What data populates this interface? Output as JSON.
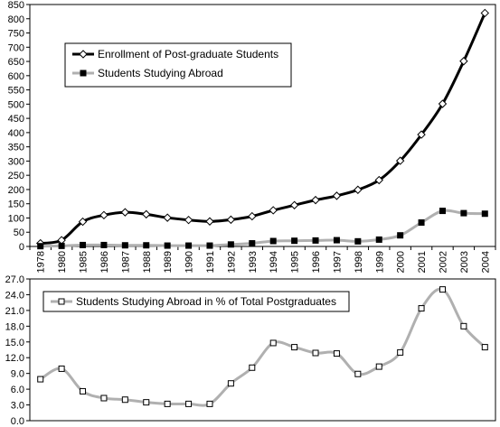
{
  "chart_data": [
    {
      "type": "line",
      "title": "",
      "xlabel": "",
      "ylabel": "",
      "categories": [
        "1978",
        "1980",
        "1985",
        "1986",
        "1987",
        "1988",
        "1989",
        "1990",
        "1991",
        "1992",
        "1993",
        "1994",
        "1995",
        "1996",
        "1997",
        "1998",
        "1999",
        "2000",
        "2001",
        "2002",
        "2003",
        "2004"
      ],
      "ylim": [
        0,
        850
      ],
      "yticks": [
        0,
        50,
        100,
        150,
        200,
        250,
        300,
        350,
        400,
        450,
        500,
        550,
        600,
        650,
        700,
        750,
        800,
        850
      ],
      "grid": false,
      "legend_position": "top-left",
      "series": [
        {
          "name": "Enrollment of Post-graduate Students",
          "color": "#000000",
          "marker": "diamond-open",
          "values": [
            11,
            22,
            87,
            110,
            120,
            113,
            101,
            93,
            88,
            94,
            106,
            127,
            145,
            163,
            178,
            199,
            233,
            301,
            393,
            501,
            651,
            820
          ]
        },
        {
          "name": "Students Studying Abroad",
          "color": "#b0b0b0",
          "marker": "square-filled",
          "values": [
            1,
            2,
            5,
            5,
            4,
            4,
            3,
            3,
            3,
            7,
            11,
            19,
            20,
            21,
            22,
            18,
            24,
            39,
            84,
            125,
            117,
            115
          ]
        }
      ]
    },
    {
      "type": "line",
      "title": "",
      "xlabel": "",
      "ylabel": "",
      "categories": [
        "1978",
        "1980",
        "1985",
        "1986",
        "1987",
        "1988",
        "1989",
        "1990",
        "1991",
        "1992",
        "1993",
        "1994",
        "1995",
        "1996",
        "1997",
        "1998",
        "1999",
        "2000",
        "2001",
        "2002",
        "2003",
        "2004"
      ],
      "ylim": [
        0.0,
        27.0
      ],
      "yticks": [
        "0.0",
        "3.0",
        "6.0",
        "9.0",
        "12.0",
        "15.0",
        "18.0",
        "21.0",
        "24.0",
        "27.0"
      ],
      "grid": false,
      "legend_position": "top-left",
      "series": [
        {
          "name": "Students Studying Abroad in % of Total Postgraduates",
          "color": "#b0b0b0",
          "marker": "square-open",
          "values": [
            7.9,
            9.9,
            5.6,
            4.3,
            4.0,
            3.5,
            3.2,
            3.2,
            3.2,
            7.1,
            10.1,
            14.8,
            14.0,
            12.9,
            12.8,
            8.9,
            10.3,
            13.0,
            21.4,
            25.0,
            18.0,
            14.0
          ]
        }
      ]
    }
  ]
}
